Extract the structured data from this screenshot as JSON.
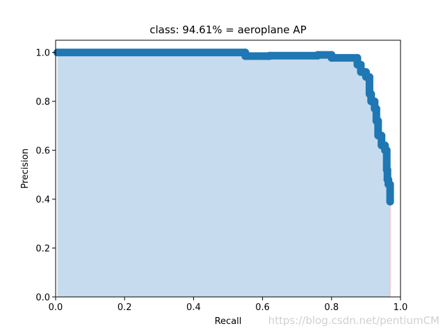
{
  "chart_data": {
    "type": "area",
    "title": "class: 94.61% = aeroplane AP",
    "xlabel": "Recall",
    "ylabel": "Precision",
    "xlim": [
      0.0,
      1.0
    ],
    "ylim": [
      0.0,
      1.05
    ],
    "xticks": [
      "0.0",
      "0.2",
      "0.4",
      "0.6",
      "0.8",
      "1.0"
    ],
    "yticks": [
      "0.0",
      "0.2",
      "0.4",
      "0.6",
      "0.8",
      "1.0"
    ],
    "grid": false,
    "series": [
      {
        "color": "#1f77b4",
        "fill_color": "#c6dbed",
        "x": [
          0.005,
          0.55,
          0.55,
          0.62,
          0.62,
          0.76,
          0.76,
          0.8,
          0.8,
          0.875,
          0.875,
          0.885,
          0.885,
          0.9,
          0.9,
          0.91,
          0.91,
          0.915,
          0.915,
          0.925,
          0.925,
          0.93,
          0.93,
          0.935,
          0.935,
          0.945,
          0.945,
          0.955,
          0.955,
          0.96,
          0.96,
          0.962,
          0.962,
          0.965,
          0.965,
          0.97,
          0.97
        ],
        "y": [
          1.0,
          1.0,
          0.985,
          0.985,
          0.987,
          0.987,
          0.99,
          0.99,
          0.978,
          0.978,
          0.95,
          0.95,
          0.92,
          0.92,
          0.9,
          0.9,
          0.83,
          0.83,
          0.8,
          0.8,
          0.77,
          0.77,
          0.72,
          0.72,
          0.66,
          0.66,
          0.62,
          0.62,
          0.6,
          0.6,
          0.52,
          0.52,
          0.48,
          0.48,
          0.46,
          0.46,
          0.39
        ]
      }
    ]
  },
  "watermark": "https://blog.csdn.net/pentiumCM"
}
